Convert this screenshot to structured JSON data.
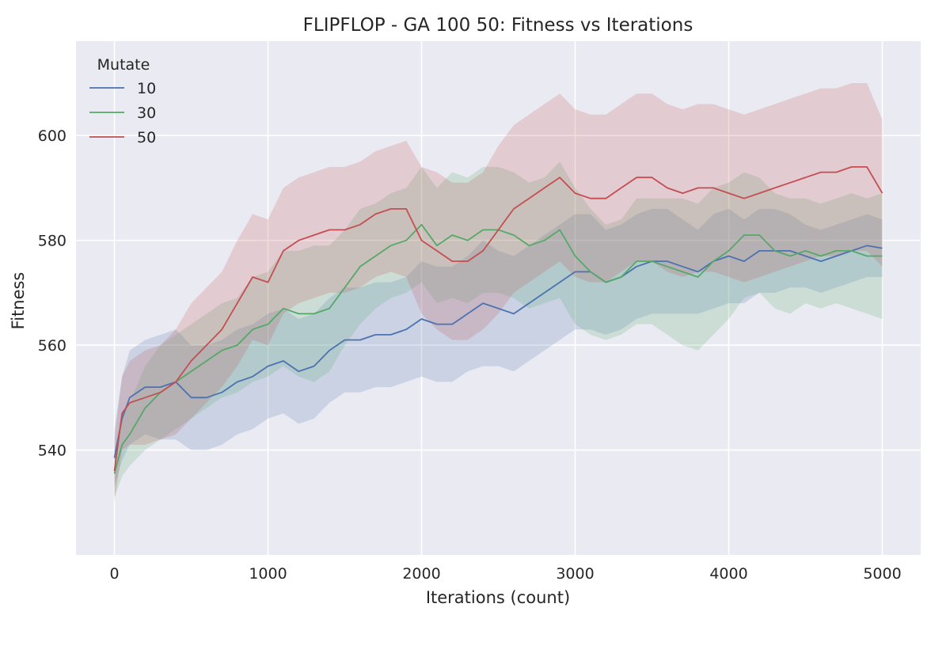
{
  "chart_data": {
    "type": "line",
    "title": "FLIPFLOP - GA 100 50: Fitness vs Iterations",
    "xlabel": "Iterations (count)",
    "ylabel": "Fitness",
    "xlim": [
      -250,
      5250
    ],
    "ylim": [
      520,
      618
    ],
    "xticks": [
      0,
      1000,
      2000,
      3000,
      4000,
      5000
    ],
    "yticks": [
      540,
      560,
      580,
      600
    ],
    "grid": true,
    "legend": {
      "title": "Mutate",
      "placement": "top-left"
    },
    "series": [
      {
        "name": "10",
        "color": "#4c72b0",
        "x": [
          0,
          50,
          100,
          200,
          300,
          400,
          500,
          600,
          700,
          800,
          900,
          1000,
          1100,
          1200,
          1300,
          1400,
          1500,
          1600,
          1700,
          1800,
          1900,
          2000,
          2100,
          2200,
          2300,
          2400,
          2500,
          2600,
          2700,
          2800,
          2900,
          3000,
          3100,
          3200,
          3300,
          3400,
          3500,
          3600,
          3700,
          3800,
          3900,
          4000,
          4100,
          4200,
          4300,
          4400,
          4500,
          4600,
          4700,
          4800,
          4900,
          5000
        ],
        "y": [
          538.5,
          546,
          550,
          552,
          552,
          553,
          550,
          550,
          551,
          553,
          554,
          556,
          557,
          555,
          556,
          559,
          561,
          561,
          562,
          562,
          563,
          565,
          564,
          564,
          566,
          568,
          567,
          566,
          568,
          570,
          572,
          574,
          574,
          572,
          573,
          575,
          576,
          576,
          575,
          574,
          576,
          577,
          576,
          578,
          578,
          578,
          577,
          576,
          577,
          578,
          579,
          578.5
        ],
        "lower": [
          533,
          538,
          541,
          543,
          542,
          542,
          540,
          540,
          541,
          543,
          544,
          546,
          547,
          545,
          546,
          549,
          551,
          551,
          552,
          552,
          553,
          554,
          553,
          553,
          555,
          556,
          556,
          555,
          557,
          559,
          561,
          563,
          563,
          562,
          563,
          565,
          566,
          566,
          566,
          566,
          567,
          568,
          568,
          570,
          570,
          571,
          571,
          570,
          571,
          572,
          573,
          573
        ],
        "upper": [
          544,
          554,
          559,
          561,
          562,
          563,
          560,
          560,
          561,
          563,
          564,
          566,
          567,
          565,
          566,
          569,
          571,
          571,
          572,
          572,
          573,
          576,
          575,
          575,
          577,
          580,
          578,
          577,
          579,
          581,
          583,
          585,
          585,
          582,
          583,
          585,
          586,
          586,
          584,
          582,
          585,
          586,
          584,
          586,
          586,
          585,
          583,
          582,
          583,
          584,
          585,
          584
        ]
      },
      {
        "name": "30",
        "color": "#55a868",
        "x": [
          0,
          50,
          100,
          200,
          300,
          400,
          500,
          600,
          700,
          800,
          900,
          1000,
          1100,
          1200,
          1300,
          1400,
          1500,
          1600,
          1700,
          1800,
          1900,
          2000,
          2100,
          2200,
          2300,
          2400,
          2500,
          2600,
          2700,
          2800,
          2900,
          3000,
          3100,
          3200,
          3300,
          3400,
          3500,
          3600,
          3700,
          3800,
          3900,
          4000,
          4100,
          4200,
          4300,
          4400,
          4500,
          4600,
          4700,
          4800,
          4900,
          5000
        ],
        "y": [
          535.5,
          541,
          543,
          548,
          551,
          553,
          555,
          557,
          559,
          560,
          563,
          564,
          567,
          566,
          566,
          567,
          571,
          575,
          577,
          579,
          580,
          583,
          579,
          581,
          580,
          582,
          582,
          581,
          579,
          580,
          582,
          577,
          574,
          572,
          573,
          576,
          576,
          575,
          574,
          573,
          576,
          578,
          581,
          581,
          578,
          577,
          578,
          577,
          578,
          578,
          577,
          577
        ],
        "lower": [
          531,
          535,
          537,
          540,
          542,
          544,
          546,
          548,
          550,
          551,
          553,
          554,
          556,
          554,
          553,
          555,
          560,
          564,
          567,
          569,
          570,
          572,
          568,
          569,
          568,
          570,
          570,
          569,
          567,
          568,
          569,
          564,
          562,
          561,
          562,
          564,
          564,
          562,
          560,
          559,
          562,
          565,
          569,
          570,
          567,
          566,
          568,
          567,
          568,
          567,
          566,
          565
        ],
        "upper": [
          540,
          547,
          549,
          556,
          560,
          562,
          564,
          566,
          568,
          569,
          573,
          574,
          578,
          578,
          579,
          579,
          582,
          586,
          587,
          589,
          590,
          594,
          590,
          593,
          592,
          594,
          594,
          593,
          591,
          592,
          595,
          590,
          586,
          583,
          584,
          588,
          588,
          588,
          588,
          587,
          590,
          591,
          593,
          592,
          589,
          588,
          588,
          587,
          588,
          589,
          588,
          589
        ]
      },
      {
        "name": "50",
        "color": "#c44e52",
        "x": [
          0,
          50,
          100,
          200,
          300,
          400,
          500,
          600,
          700,
          800,
          900,
          1000,
          1100,
          1200,
          1300,
          1400,
          1500,
          1600,
          1700,
          1800,
          1900,
          2000,
          2100,
          2200,
          2300,
          2400,
          2500,
          2600,
          2700,
          2800,
          2900,
          3000,
          3100,
          3200,
          3300,
          3400,
          3500,
          3600,
          3700,
          3800,
          3900,
          4000,
          4100,
          4200,
          4300,
          4400,
          4500,
          4600,
          4700,
          4800,
          4900,
          5000
        ],
        "y": [
          536,
          547,
          549,
          550,
          551,
          553,
          557,
          560,
          563,
          568,
          573,
          572,
          578,
          580,
          581,
          582,
          582,
          583,
          585,
          586,
          586,
          580,
          578,
          576,
          576,
          578,
          582,
          586,
          588,
          590,
          592,
          589,
          588,
          588,
          590,
          592,
          592,
          590,
          589,
          590,
          590,
          589,
          588,
          589,
          590,
          591,
          592,
          593,
          593,
          594,
          594,
          589
        ],
        "lower": [
          530,
          540,
          541,
          541,
          542,
          543,
          546,
          549,
          552,
          556,
          561,
          560,
          566,
          568,
          569,
          570,
          570,
          571,
          573,
          574,
          573,
          566,
          563,
          561,
          561,
          563,
          566,
          570,
          572,
          574,
          576,
          573,
          572,
          572,
          574,
          576,
          576,
          574,
          573,
          574,
          574,
          573,
          572,
          573,
          574,
          575,
          576,
          577,
          577,
          578,
          578,
          575
        ],
        "upper": [
          542,
          554,
          557,
          559,
          560,
          563,
          568,
          571,
          574,
          580,
          585,
          584,
          590,
          592,
          593,
          594,
          594,
          595,
          597,
          598,
          599,
          594,
          593,
          591,
          591,
          593,
          598,
          602,
          604,
          606,
          608,
          605,
          604,
          604,
          606,
          608,
          608,
          606,
          605,
          606,
          606,
          605,
          604,
          605,
          606,
          607,
          608,
          609,
          609,
          610,
          610,
          603
        ]
      }
    ]
  }
}
